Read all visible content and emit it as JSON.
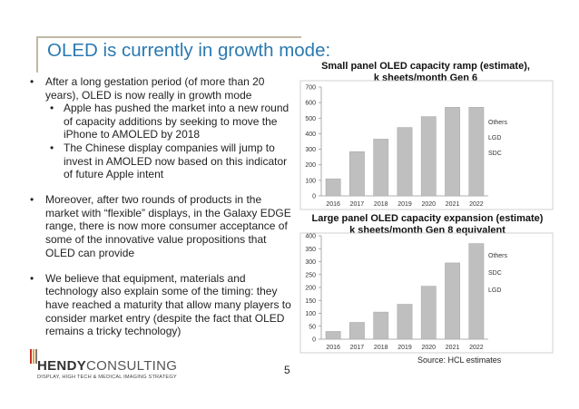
{
  "slide": {
    "title": "OLED is currently in growth mode:",
    "page_number": "5",
    "source": "Source: HCL estimates"
  },
  "bullets": {
    "b1": "After a long gestation period (of more than 20 years), OLED is now really in growth mode",
    "b1a": "Apple has pushed the market into a new round of capacity additions by seeking to move the iPhone to AMOLED by 2018",
    "b1b": "The Chinese display companies will jump to invest in AMOLED now based on this indicator of future Apple intent",
    "b2": "Moreover, after two rounds of products in the market with “flexible” displays, in the Galaxy EDGE range, there is now more consumer acceptance of some of the innovative value propositions that OLED can provide",
    "b3": "We believe that equipment, materials and technology also explain some of the timing: they have reached a maturity that allow many players to consider market entry (despite the fact that OLED remains a tricky technology)",
    "dot_main": "•",
    "dot_sub": "•"
  },
  "logo": {
    "name_bold": "HENDY",
    "name_rest": "CONSULTING",
    "tagline": "DISPLAY, HIGH TECH & MEDICAL IMAGING STRATEGY",
    "bar_colors": [
      "#c9302c",
      "#e8a33b",
      "#7a7a7a"
    ]
  },
  "colors": {
    "title": "#2a7ab0",
    "bar": "#bfbfbf",
    "bar_stroke": "#a6a6a6"
  },
  "chart_data": [
    {
      "type": "bar",
      "title_line1": "Small panel OLED capacity ramp (estimate),",
      "title_line2": "k sheets/month Gen 6",
      "categories": [
        "2016",
        "2017",
        "2018",
        "2019",
        "2020",
        "2021",
        "2022"
      ],
      "values": [
        110,
        285,
        365,
        440,
        510,
        570,
        570
      ],
      "ylim": [
        0,
        700
      ],
      "yticks": [
        "0",
        "100",
        "200",
        "300",
        "400",
        "500",
        "600",
        "700"
      ],
      "legend": [
        "Others",
        "LGD",
        "SDC"
      ],
      "xlabel": "",
      "ylabel": ""
    },
    {
      "type": "bar",
      "title_line1": "Large panel OLED capacity expansion (estimate)",
      "title_line2": "k sheets/month Gen 8 equivalent",
      "categories": [
        "2016",
        "2017",
        "2018",
        "2019",
        "2020",
        "2021",
        "2022"
      ],
      "values": [
        30,
        65,
        105,
        135,
        205,
        295,
        370
      ],
      "ylim": [
        0,
        400
      ],
      "yticks": [
        "0",
        "50",
        "100",
        "150",
        "200",
        "250",
        "300",
        "350",
        "400"
      ],
      "legend": [
        "Others",
        "SDC",
        "LGD"
      ],
      "xlabel": "",
      "ylabel": ""
    }
  ]
}
